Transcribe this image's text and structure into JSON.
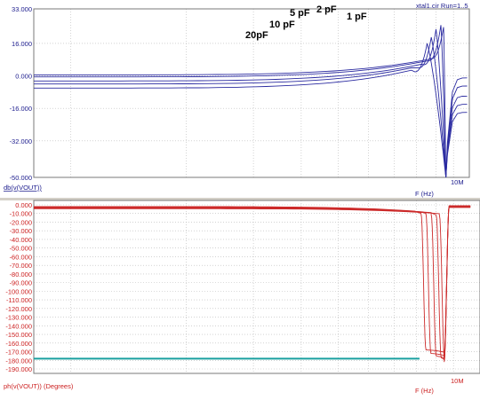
{
  "header": {
    "title": "xtal1.cir Run=1..5"
  },
  "colors": {
    "magnitude_axis": "#1a1a8c",
    "magnitude_trace": "#2a2aa0",
    "phase_axis": "#cc2020",
    "phase_trace": "#cc2a2a",
    "phase_marker": "#1aa0a0",
    "grid": "#b8b8b8"
  },
  "chart_data": [
    {
      "type": "line",
      "name": "magnitude",
      "xlabel": "F (Hz)",
      "ylabel": "db(v(VOUT))",
      "xscale": "log",
      "x_tick_label": "10M",
      "y_ticks": [
        "33.000",
        "16.000",
        "0.000",
        "-16.000",
        "-32.000",
        "-50.000"
      ],
      "ylim": [
        -50,
        33
      ],
      "grid": true,
      "annotations": [
        "20pF",
        "10 pF",
        "5 pF",
        "2 pF",
        "1 pF"
      ],
      "series": [
        {
          "label": "20pF",
          "resonance_mhz": 8.53,
          "peak_db": 16,
          "left_db": -6.0,
          "right_db": -18.0
        },
        {
          "label": "10 pF",
          "resonance_mhz": 8.75,
          "peak_db": 19,
          "left_db": -4.0,
          "right_db": -14.0
        },
        {
          "label": "5 pF",
          "resonance_mhz": 9.0,
          "peak_db": 23,
          "left_db": -2.5,
          "right_db": -10.0
        },
        {
          "label": "2 pF",
          "resonance_mhz": 9.27,
          "peak_db": 25,
          "left_db": -0.5,
          "right_db": -5.0
        },
        {
          "label": "1 pF",
          "resonance_mhz": 9.42,
          "peak_db": 24,
          "left_db": 0.5,
          "right_db": -1.0
        }
      ],
      "antiresonance_mhz": 9.55,
      "antiresonance_db": -50
    },
    {
      "type": "line",
      "name": "phase",
      "xlabel": "F (Hz)",
      "ylabel": "ph(v(VOUT)) (Degrees)",
      "xscale": "log",
      "x_tick_label": "10M",
      "y_ticks": [
        "0.000",
        "-10.000",
        "-20.000",
        "-30.000",
        "-40.000",
        "-50.000",
        "-60.000",
        "-70.000",
        "-80.000",
        "-90.000",
        "-100.000",
        "-110.000",
        "-120.000",
        "-130.000",
        "-140.000",
        "-150.000",
        "-160.000",
        "-170.000",
        "-180.000",
        "-190.000"
      ],
      "ylim": [
        -190,
        0
      ],
      "grid": true,
      "marker_value": -178,
      "marker_end_mhz": 8.15,
      "series": [
        {
          "label": "20pF",
          "transition_mhz": 8.35,
          "floor_deg": -168
        },
        {
          "label": "10 pF",
          "transition_mhz": 8.6,
          "floor_deg": -172
        },
        {
          "label": "5 pF",
          "transition_mhz": 8.88,
          "floor_deg": -175
        },
        {
          "label": "2 pF",
          "transition_mhz": 9.15,
          "floor_deg": -177
        },
        {
          "label": "1 pF",
          "transition_mhz": 9.33,
          "floor_deg": -179
        }
      ],
      "rise_mhz": 9.55
    }
  ]
}
